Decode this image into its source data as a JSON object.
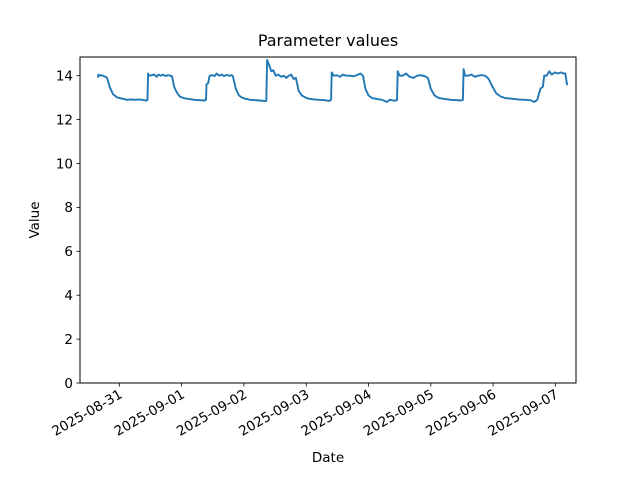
{
  "figure": {
    "background_color": "#ffffff",
    "axis_color": "#000000"
  },
  "chart_data": {
    "type": "line",
    "title": "Parameter values",
    "xlabel": "Date",
    "ylabel": "Value",
    "grid": false,
    "legend": "none",
    "line_color": "#1f77b4",
    "x_axis": {
      "epoch": "2025-08-31T00:00:00Z",
      "range_days": [
        -0.631,
        7.331
      ],
      "tick_labels": [
        "2025-08-31",
        "2025-09-01",
        "2025-09-02",
        "2025-09-03",
        "2025-09-04",
        "2025-09-05",
        "2025-09-06",
        "2025-09-07"
      ],
      "tick_rotation_deg": 30
    },
    "y_axis": {
      "range": [
        0,
        14.85
      ],
      "ticks": [
        0,
        2,
        4,
        6,
        8,
        10,
        12,
        14
      ]
    },
    "series": [
      {
        "points": [
          [
            "2025-08-30T15:47",
            13.95
          ],
          [
            "2025-08-30T15:58",
            14.05
          ],
          [
            "2025-08-30T16:34",
            14.0
          ],
          [
            "2025-08-30T17:17",
            14.02
          ],
          [
            "2025-08-30T18:00",
            13.98
          ],
          [
            "2025-08-30T18:43",
            13.95
          ],
          [
            "2025-08-30T19:16",
            13.9
          ],
          [
            "2025-08-30T20:24",
            13.45
          ],
          [
            "2025-08-30T21:36",
            13.15
          ],
          [
            "2025-08-30T23:17",
            13.0
          ],
          [
            "2025-08-31T01:12",
            12.95
          ],
          [
            "2025-08-31T02:59",
            12.9
          ],
          [
            "2025-08-31T04:19",
            12.92
          ],
          [
            "2025-08-31T06:00",
            12.9
          ],
          [
            "2025-08-31T07:41",
            12.92
          ],
          [
            "2025-08-31T09:36",
            12.88
          ],
          [
            "2025-08-31T10:34",
            12.87
          ],
          [
            "2025-08-31T10:51",
            12.9
          ],
          [
            "2025-08-31T11:05",
            14.1
          ],
          [
            "2025-08-31T11:24",
            14.0
          ],
          [
            "2025-08-31T12:29",
            14.02
          ],
          [
            "2025-08-31T13:26",
            14.05
          ],
          [
            "2025-08-31T14:24",
            13.95
          ],
          [
            "2025-08-31T15:07",
            14.05
          ],
          [
            "2025-08-31T16:05",
            14.0
          ],
          [
            "2025-08-31T16:48",
            14.05
          ],
          [
            "2025-08-31T17:46",
            13.98
          ],
          [
            "2025-08-31T18:43",
            14.02
          ],
          [
            "2025-08-31T19:41",
            14.0
          ],
          [
            "2025-08-31T20:18",
            13.97
          ],
          [
            "2025-08-31T21:07",
            13.5
          ],
          [
            "2025-08-31T22:05",
            13.25
          ],
          [
            "2025-08-31T23:17",
            13.05
          ],
          [
            "2025-09-01T00:58",
            12.97
          ],
          [
            "2025-09-01T03:07",
            12.93
          ],
          [
            "2025-09-01T04:48",
            12.9
          ],
          [
            "2025-09-01T07:12",
            12.88
          ],
          [
            "2025-09-01T08:53",
            12.87
          ],
          [
            "2025-09-01T09:24",
            12.9
          ],
          [
            "2025-09-01T09:36",
            13.6
          ],
          [
            "2025-09-01T10:12",
            13.65
          ],
          [
            "2025-09-01T10:48",
            14.0
          ],
          [
            "2025-09-01T11:46",
            14.02
          ],
          [
            "2025-09-01T12:43",
            13.98
          ],
          [
            "2025-09-01T13:26",
            14.1
          ],
          [
            "2025-09-01T14:24",
            14.0
          ],
          [
            "2025-09-01T15:22",
            14.05
          ],
          [
            "2025-09-01T16:19",
            13.98
          ],
          [
            "2025-09-01T17:17",
            14.03
          ],
          [
            "2025-09-01T18:29",
            14.0
          ],
          [
            "2025-09-01T19:26",
            14.02
          ],
          [
            "2025-09-01T19:48",
            13.95
          ],
          [
            "2025-09-01T20:53",
            13.4
          ],
          [
            "2025-09-01T22:05",
            13.1
          ],
          [
            "2025-09-01T23:17",
            13.0
          ],
          [
            "2025-09-02T00:29",
            12.95
          ],
          [
            "2025-09-02T02:24",
            12.9
          ],
          [
            "2025-09-02T04:19",
            12.88
          ],
          [
            "2025-09-02T06:14",
            12.87
          ],
          [
            "2025-09-02T07:55",
            12.84
          ],
          [
            "2025-09-02T08:38",
            12.85
          ],
          [
            "2025-09-02T08:56",
            14.72
          ],
          [
            "2025-09-02T09:50",
            14.45
          ],
          [
            "2025-09-02T10:34",
            14.2
          ],
          [
            "2025-09-02T11:17",
            14.25
          ],
          [
            "2025-09-02T12:14",
            14.0
          ],
          [
            "2025-09-02T13:12",
            14.05
          ],
          [
            "2025-09-02T14:24",
            13.95
          ],
          [
            "2025-09-02T15:22",
            14.0
          ],
          [
            "2025-09-02T16:19",
            13.9
          ],
          [
            "2025-09-02T17:17",
            14.0
          ],
          [
            "2025-09-02T18:14",
            14.05
          ],
          [
            "2025-09-02T19:12",
            13.85
          ],
          [
            "2025-09-02T20:02",
            13.9
          ],
          [
            "2025-09-02T21:07",
            13.3
          ],
          [
            "2025-09-02T22:19",
            13.1
          ],
          [
            "2025-09-02T23:46",
            13.0
          ],
          [
            "2025-09-03T00:58",
            12.95
          ],
          [
            "2025-09-03T02:53",
            12.92
          ],
          [
            "2025-09-03T05:02",
            12.9
          ],
          [
            "2025-09-03T07:12",
            12.88
          ],
          [
            "2025-09-03T08:46",
            12.85
          ],
          [
            "2025-09-03T09:36",
            12.9
          ],
          [
            "2025-09-03T09:50",
            14.15
          ],
          [
            "2025-09-03T10:34",
            14.0
          ],
          [
            "2025-09-03T11:46",
            14.02
          ],
          [
            "2025-09-03T12:58",
            13.95
          ],
          [
            "2025-09-03T14:10",
            14.05
          ],
          [
            "2025-09-03T15:22",
            14.0
          ],
          [
            "2025-09-03T16:48",
            14.0
          ],
          [
            "2025-09-03T18:14",
            13.97
          ],
          [
            "2025-09-03T19:41",
            14.03
          ],
          [
            "2025-09-03T20:53",
            14.1
          ],
          [
            "2025-09-03T21:53",
            14.0
          ],
          [
            "2025-09-03T22:48",
            13.4
          ],
          [
            "2025-09-04T00:00",
            13.1
          ],
          [
            "2025-09-04T01:26",
            12.98
          ],
          [
            "2025-09-04T03:22",
            12.93
          ],
          [
            "2025-09-04T05:17",
            12.9
          ],
          [
            "2025-09-04T07:06",
            12.8
          ],
          [
            "2025-09-04T08:10",
            12.9
          ],
          [
            "2025-09-04T10:05",
            12.86
          ],
          [
            "2025-09-04T10:58",
            12.88
          ],
          [
            "2025-09-04T11:14",
            14.2
          ],
          [
            "2025-09-04T12:00",
            14.0
          ],
          [
            "2025-09-04T13:12",
            14.0
          ],
          [
            "2025-09-04T14:24",
            14.1
          ],
          [
            "2025-09-04T15:50",
            13.95
          ],
          [
            "2025-09-04T17:17",
            13.9
          ],
          [
            "2025-09-04T18:43",
            14.0
          ],
          [
            "2025-09-04T20:10",
            14.02
          ],
          [
            "2025-09-04T21:36",
            13.98
          ],
          [
            "2025-09-04T22:54",
            13.9
          ],
          [
            "2025-09-05T00:00",
            13.4
          ],
          [
            "2025-09-05T01:26",
            13.1
          ],
          [
            "2025-09-05T03:07",
            12.98
          ],
          [
            "2025-09-05T05:17",
            12.94
          ],
          [
            "2025-09-05T07:41",
            12.9
          ],
          [
            "2025-09-05T10:05",
            12.88
          ],
          [
            "2025-09-05T11:31",
            12.87
          ],
          [
            "2025-09-05T12:22",
            12.9
          ],
          [
            "2025-09-05T12:39",
            14.3
          ],
          [
            "2025-09-05T13:12",
            14.0
          ],
          [
            "2025-09-05T14:24",
            14.0
          ],
          [
            "2025-09-05T15:36",
            14.05
          ],
          [
            "2025-09-05T17:02",
            13.95
          ],
          [
            "2025-09-05T18:14",
            14.0
          ],
          [
            "2025-09-05T19:41",
            14.03
          ],
          [
            "2025-09-05T21:07",
            13.98
          ],
          [
            "2025-09-05T22:19",
            13.85
          ],
          [
            "2025-09-05T23:31",
            13.55
          ],
          [
            "2025-09-06T01:12",
            13.2
          ],
          [
            "2025-09-06T02:53",
            13.05
          ],
          [
            "2025-09-06T04:48",
            12.98
          ],
          [
            "2025-09-06T07:12",
            12.95
          ],
          [
            "2025-09-06T09:36",
            12.92
          ],
          [
            "2025-09-06T12:00",
            12.9
          ],
          [
            "2025-09-06T14:24",
            12.88
          ],
          [
            "2025-09-06T15:50",
            12.8
          ],
          [
            "2025-09-06T17:02",
            12.9
          ],
          [
            "2025-09-06T18:14",
            13.4
          ],
          [
            "2025-09-06T19:12",
            13.5
          ],
          [
            "2025-09-06T19:41",
            14.0
          ],
          [
            "2025-09-06T20:38",
            14.0
          ],
          [
            "2025-09-06T21:36",
            14.2
          ],
          [
            "2025-09-06T22:34",
            14.05
          ],
          [
            "2025-09-06T23:46",
            14.15
          ],
          [
            "2025-09-07T00:58",
            14.1
          ],
          [
            "2025-09-07T02:10",
            14.15
          ],
          [
            "2025-09-07T03:07",
            14.1
          ],
          [
            "2025-09-07T03:50",
            14.1
          ],
          [
            "2025-09-07T04:28",
            13.6
          ]
        ]
      }
    ]
  }
}
